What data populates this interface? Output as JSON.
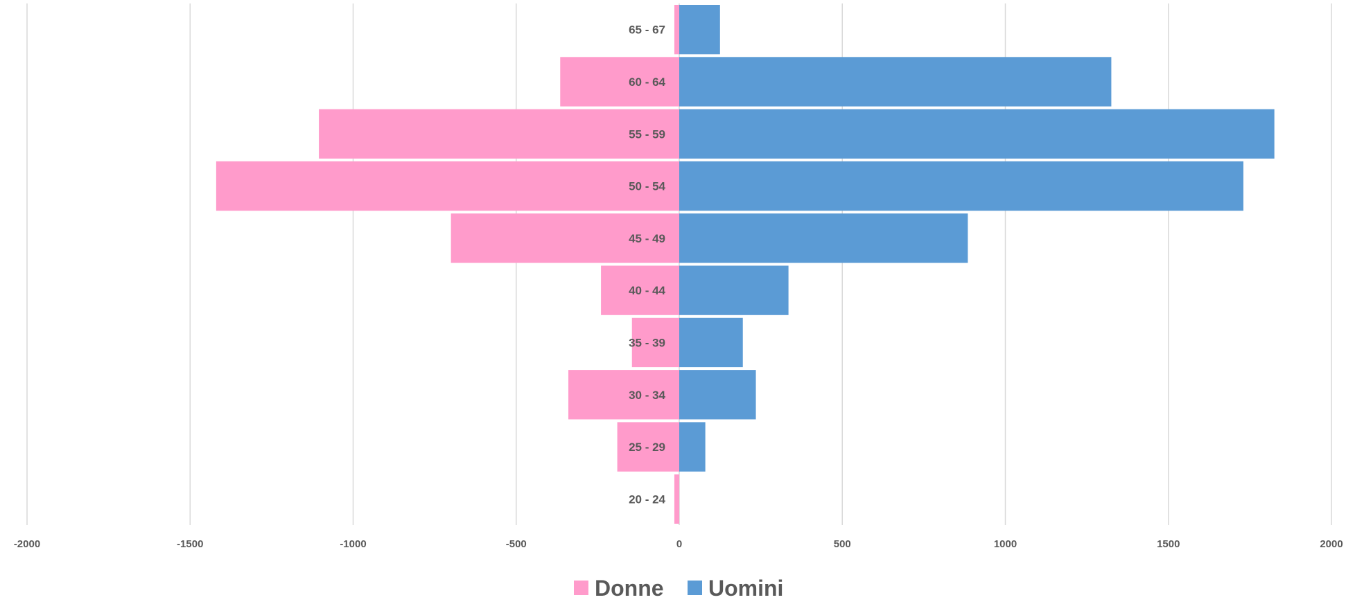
{
  "chart_data": {
    "type": "bar",
    "orientation": "horizontal",
    "categories": [
      "20 - 24",
      "25 - 29",
      "30 - 34",
      "35 - 39",
      "40 - 44",
      "45 - 49",
      "50 - 54",
      "55 - 59",
      "60 - 64",
      "65 - 67"
    ],
    "series": [
      {
        "name": "Donne",
        "color": "#FF9BCB",
        "values": [
          -15,
          -190,
          -340,
          -145,
          -240,
          -700,
          -1420,
          -1105,
          -365,
          -15
        ]
      },
      {
        "name": "Uomini",
        "color": "#5B9BD5",
        "values": [
          0,
          80,
          235,
          195,
          335,
          885,
          1730,
          1825,
          1325,
          125
        ]
      }
    ],
    "xlim": [
      -2000,
      2000
    ],
    "xticks": [
      "-2000",
      "-1500",
      "-1000",
      "-500",
      "0",
      "500",
      "1000",
      "1500",
      "2000"
    ],
    "grid": "vertical",
    "legend": "bottom-center"
  }
}
